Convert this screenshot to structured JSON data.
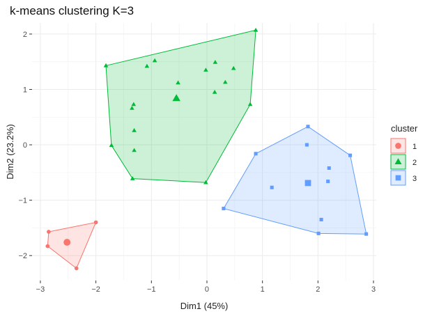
{
  "chart_data": {
    "type": "scatter",
    "title": "k-means clustering K=3",
    "xlabel": "Dim1 (45%)",
    "ylabel": "Dim2 (23.2%)",
    "xlim": [
      -3.15,
      3.05
    ],
    "ylim": [
      -2.45,
      2.2
    ],
    "xticks": [
      -3,
      -2,
      -1,
      0,
      1,
      2,
      3
    ],
    "yticks": [
      -2,
      -1,
      0,
      1,
      2
    ],
    "grid": true,
    "legend": {
      "title": "cluster",
      "position": "right"
    },
    "series": [
      {
        "name": "1",
        "color": "#F8766D",
        "shape": "circle",
        "points": [
          [
            -2.85,
            -1.57
          ],
          [
            -2.87,
            -1.83
          ],
          [
            -2.0,
            -1.4
          ],
          [
            -2.35,
            -2.23
          ]
        ],
        "hull": [
          [
            -2.85,
            -1.57
          ],
          [
            -2.0,
            -1.4
          ],
          [
            -2.35,
            -2.23
          ],
          [
            -2.87,
            -1.83
          ]
        ],
        "centroid": [
          -2.52,
          -1.76
        ]
      },
      {
        "name": "2",
        "color": "#00BA38",
        "shape": "triangle",
        "points": [
          [
            -1.82,
            1.43
          ],
          [
            0.88,
            2.07
          ],
          [
            0.78,
            0.73
          ],
          [
            -0.02,
            -0.68
          ],
          [
            -1.34,
            -0.61
          ],
          [
            -1.72,
            -0.01
          ],
          [
            -1.32,
            0.73
          ],
          [
            -1.35,
            0.66
          ],
          [
            -1.31,
            0.26
          ],
          [
            -1.31,
            -0.1
          ],
          [
            -1.08,
            1.42
          ],
          [
            -0.94,
            1.52
          ],
          [
            -0.52,
            1.12
          ],
          [
            -0.02,
            1.35
          ],
          [
            0.15,
            1.49
          ],
          [
            0.33,
            1.13
          ],
          [
            0.48,
            1.38
          ],
          [
            0.14,
            0.95
          ],
          [
            -0.56,
            0.84
          ]
        ],
        "hull": [
          [
            -1.82,
            1.43
          ],
          [
            0.88,
            2.07
          ],
          [
            0.78,
            0.73
          ],
          [
            -0.02,
            -0.68
          ],
          [
            -1.34,
            -0.61
          ],
          [
            -1.72,
            -0.01
          ]
        ],
        "centroid": [
          -0.55,
          0.84
        ]
      },
      {
        "name": "3",
        "color": "#619CFF",
        "shape": "square",
        "points": [
          [
            0.3,
            -1.15
          ],
          [
            0.88,
            -0.16
          ],
          [
            1.82,
            0.33
          ],
          [
            2.58,
            -0.19
          ],
          [
            2.87,
            -1.61
          ],
          [
            2.01,
            -1.6
          ],
          [
            1.8,
            0.0
          ],
          [
            2.2,
            -0.42
          ],
          [
            2.18,
            -0.66
          ],
          [
            1.17,
            -0.77
          ],
          [
            2.06,
            -1.35
          ],
          [
            1.82,
            -0.69
          ]
        ],
        "hull": [
          [
            0.3,
            -1.15
          ],
          [
            0.88,
            -0.16
          ],
          [
            1.82,
            0.33
          ],
          [
            2.58,
            -0.19
          ],
          [
            2.87,
            -1.61
          ],
          [
            2.01,
            -1.6
          ]
        ],
        "centroid": [
          1.82,
          -0.69
        ]
      }
    ]
  }
}
